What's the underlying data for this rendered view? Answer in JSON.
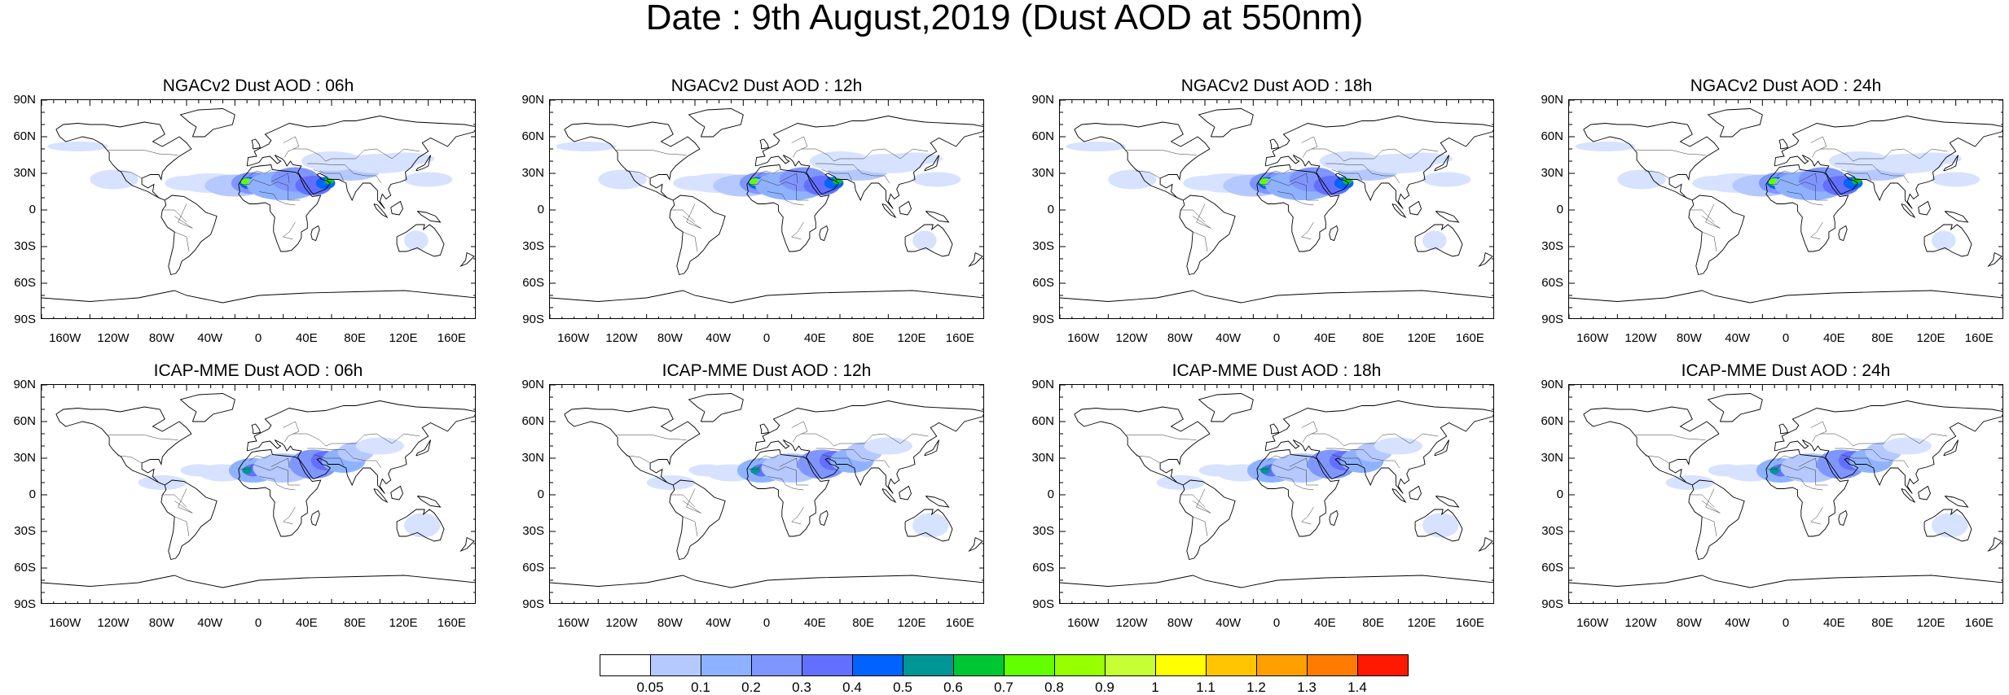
{
  "title": "Date : 9th August,2019 (Dust AOD at 550nm)",
  "panels": [
    {
      "title": "NGACv2 Dust AOD : 06h",
      "model": "NGACv2"
    },
    {
      "title": "NGACv2 Dust AOD : 12h",
      "model": "NGACv2"
    },
    {
      "title": "NGACv2 Dust AOD : 18h",
      "model": "NGACv2"
    },
    {
      "title": "NGACv2 Dust AOD : 24h",
      "model": "NGACv2"
    },
    {
      "title": "ICAP-MME Dust AOD : 06h",
      "model": "ICAP-MME"
    },
    {
      "title": "ICAP-MME Dust AOD : 12h",
      "model": "ICAP-MME"
    },
    {
      "title": "ICAP-MME Dust AOD : 18h",
      "model": "ICAP-MME"
    },
    {
      "title": "ICAP-MME Dust AOD : 24h",
      "model": "ICAP-MME"
    }
  ],
  "lat_labels": [
    "90N",
    "60N",
    "30N",
    "0",
    "30S",
    "60S",
    "90S"
  ],
  "lon_labels": [
    "160W",
    "120W",
    "80W",
    "40W",
    "0",
    "40E",
    "80E",
    "120E",
    "160E"
  ],
  "colorbar": {
    "labels": [
      "0.05",
      "0.1",
      "0.2",
      "0.3",
      "0.4",
      "0.5",
      "0.6",
      "0.7",
      "0.8",
      "0.9",
      "1",
      "1.1",
      "1.2",
      "1.3",
      "1.4"
    ],
    "colors": [
      "#ffffff",
      "#d6e2ff",
      "#b5c9ff",
      "#8eb2ff",
      "#7f96ff",
      "#6370ff",
      "#0063ff",
      "#009696",
      "#00c633",
      "#63ff00",
      "#96ff00",
      "#c6ff33",
      "#ffff00",
      "#ffc600",
      "#ffa000",
      "#ff7c00",
      "#ff1900"
    ]
  }
}
